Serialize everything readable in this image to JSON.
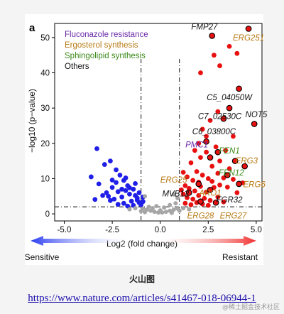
{
  "panel_label": "a",
  "legend": [
    {
      "label": "Fluconazole resistance",
      "color": "#6a2aa8"
    },
    {
      "label": "Ergosterol synthesis",
      "color": "#b87b15"
    },
    {
      "label": "Sphingolipid synthesis",
      "color": "#3a8a18"
    },
    {
      "label": "Others",
      "color": "#111111"
    }
  ],
  "arrows": {
    "left": "Sensitive",
    "right": "Resistant",
    "left_color": "#2b3df0",
    "right_color": "#f03030"
  },
  "caption": "火山图",
  "link": "https://www.nature.com/articles/s41467-018-06944-1",
  "watermark": "@稀土掘金技术社区",
  "chart_data": {
    "type": "scatter",
    "xlabel": "Log2 (fold change)",
    "ylabel": "−log10 (p−value)",
    "xlim": [
      -5.5,
      5.3
    ],
    "ylim": [
      -2,
      54
    ],
    "xticks": [
      -5.0,
      -2.5,
      0.0,
      2.5,
      5.0
    ],
    "yticks": [
      0,
      10,
      20,
      30,
      40,
      50
    ],
    "thresholds": {
      "x": [
        -1,
        1
      ],
      "y": 2
    },
    "colors": {
      "sensitive": "#1f1fe8",
      "resistant": "#e81010",
      "nonsig": "#a6a6a6",
      "highlight_edge": "#000000"
    },
    "series": [
      {
        "group": "sensitive",
        "points": [
          [
            -3.3,
            18.5
          ],
          [
            -2.9,
            14.0
          ],
          [
            -2.6,
            15.0
          ],
          [
            -2.3,
            12.5
          ],
          [
            -3.6,
            10.5
          ],
          [
            -3.2,
            8.5
          ],
          [
            -2.1,
            11.0
          ],
          [
            -1.9,
            9.5
          ],
          [
            -1.7,
            8.0
          ],
          [
            -1.4,
            7.0
          ],
          [
            -2.5,
            7.5
          ],
          [
            -2.8,
            6.0
          ],
          [
            -3.0,
            5.2
          ],
          [
            -2.2,
            6.3
          ],
          [
            -1.8,
            6.6
          ],
          [
            -1.6,
            5.6
          ],
          [
            -1.3,
            5.2
          ],
          [
            -1.2,
            4.5
          ],
          [
            -2.0,
            4.8
          ],
          [
            -2.4,
            4.2
          ],
          [
            -2.6,
            3.8
          ],
          [
            -1.5,
            3.6
          ],
          [
            -1.1,
            3.2
          ],
          [
            -1.9,
            3.0
          ],
          [
            -2.2,
            2.7
          ],
          [
            -1.4,
            2.4
          ],
          [
            -1.7,
            2.2
          ],
          [
            -1.0,
            2.6
          ],
          [
            -1.2,
            3.9
          ],
          [
            -0.9,
            3.5
          ],
          [
            -2.7,
            5.0
          ],
          [
            -3.4,
            4.1
          ],
          [
            -2.0,
            7.0
          ],
          [
            -1.6,
            7.4
          ],
          [
            -1.1,
            6.0
          ],
          [
            -0.9,
            4.8
          ],
          [
            -1.3,
            8.6
          ],
          [
            -2.3,
            8.9
          ],
          [
            -1.8,
            10.2
          ],
          [
            -2.5,
            9.6
          ]
        ]
      },
      {
        "group": "nonsig",
        "points": [
          [
            -0.9,
            1.5
          ],
          [
            -0.7,
            1.2
          ],
          [
            -0.5,
            0.9
          ],
          [
            -0.3,
            0.6
          ],
          [
            -0.1,
            0.4
          ],
          [
            0.1,
            0.4
          ],
          [
            0.3,
            0.6
          ],
          [
            0.5,
            0.9
          ],
          [
            0.7,
            1.2
          ],
          [
            0.9,
            1.5
          ],
          [
            -0.6,
            2.0
          ],
          [
            -0.4,
            1.6
          ],
          [
            0.2,
            1.8
          ],
          [
            0.5,
            2.5
          ],
          [
            0.8,
            3.0
          ],
          [
            -0.2,
            2.2
          ],
          [
            -1.3,
            1.6
          ],
          [
            -1.6,
            1.3
          ],
          [
            1.2,
            1.6
          ],
          [
            1.5,
            1.3
          ],
          [
            -0.8,
            0.5
          ],
          [
            0.6,
            0.3
          ],
          [
            0.0,
            1.0
          ],
          [
            -1.0,
            0.8
          ],
          [
            1.0,
            0.9
          ],
          [
            0.9,
            4.5
          ],
          [
            0.7,
            5.5
          ],
          [
            -0.8,
            5.0
          ]
        ]
      },
      {
        "group": "resistant",
        "points": [
          [
            2.8,
            45.0
          ],
          [
            3.1,
            42.0
          ],
          [
            3.6,
            47.5
          ],
          [
            4.0,
            45.5
          ],
          [
            2.1,
            40.0
          ],
          [
            3.0,
            29.0
          ],
          [
            2.6,
            26.5
          ],
          [
            2.2,
            24.0
          ],
          [
            2.4,
            22.0
          ],
          [
            2.0,
            20.0
          ],
          [
            3.8,
            22.0
          ],
          [
            1.8,
            18.0
          ],
          [
            2.1,
            16.0
          ],
          [
            2.4,
            17.5
          ],
          [
            2.9,
            19.0
          ],
          [
            3.1,
            15.0
          ],
          [
            3.4,
            18.0
          ],
          [
            2.7,
            13.5
          ],
          [
            1.6,
            14.5
          ],
          [
            1.9,
            12.0
          ],
          [
            2.2,
            11.0
          ],
          [
            1.4,
            10.5
          ],
          [
            1.7,
            9.5
          ],
          [
            2.5,
            10.0
          ],
          [
            3.0,
            11.5
          ],
          [
            3.3,
            10.2
          ],
          [
            3.6,
            12.8
          ],
          [
            1.3,
            8.0
          ],
          [
            1.5,
            7.2
          ],
          [
            1.8,
            6.5
          ],
          [
            2.1,
            7.8
          ],
          [
            2.4,
            6.2
          ],
          [
            2.8,
            7.5
          ],
          [
            3.1,
            8.2
          ],
          [
            3.5,
            7.6
          ],
          [
            1.2,
            5.6
          ],
          [
            1.4,
            4.6
          ],
          [
            1.7,
            4.2
          ],
          [
            2.0,
            5.2
          ],
          [
            2.3,
            4.4
          ],
          [
            2.6,
            3.8
          ],
          [
            3.0,
            4.8
          ],
          [
            3.3,
            3.4
          ],
          [
            1.3,
            3.0
          ],
          [
            1.6,
            2.6
          ],
          [
            1.9,
            3.2
          ],
          [
            2.2,
            2.8
          ],
          [
            2.5,
            2.4
          ],
          [
            4.0,
            6.0
          ],
          [
            4.3,
            8.8
          ],
          [
            1.1,
            6.8
          ],
          [
            1.2,
            11.8
          ],
          [
            2.0,
            9.0
          ],
          [
            2.7,
            9.2
          ],
          [
            3.8,
            9.8
          ]
        ]
      },
      {
        "group": "highlighted",
        "points": [
          [
            2.7,
            50.5
          ],
          [
            4.6,
            52.5
          ],
          [
            4.1,
            35.5
          ],
          [
            3.6,
            30.0
          ],
          [
            4.9,
            25.5
          ],
          [
            3.3,
            27.0
          ],
          [
            2.4,
            20.5
          ],
          [
            2.6,
            16.0
          ],
          [
            3.0,
            17.5
          ],
          [
            3.9,
            15.0
          ],
          [
            4.4,
            13.5
          ],
          [
            3.5,
            11.0
          ],
          [
            4.1,
            8.5
          ],
          [
            2.0,
            8.5
          ],
          [
            1.5,
            6.0
          ],
          [
            2.6,
            6.8
          ],
          [
            2.1,
            3.5
          ],
          [
            2.9,
            3.2
          ]
        ]
      }
    ],
    "annotations": [
      {
        "text": "FMP27",
        "x": 2.3,
        "y": 52.3,
        "color": "#111111"
      },
      {
        "text": "ERG251",
        "x": 4.6,
        "y": 49.2,
        "color": "#b87b15"
      },
      {
        "text": "C5_04050W",
        "x": 3.6,
        "y": 32.2,
        "color": "#111111"
      },
      {
        "text": "NOT5",
        "x": 5.0,
        "y": 27.4,
        "color": "#111111"
      },
      {
        "text": "C7_02530C",
        "x": 3.1,
        "y": 26.9,
        "color": "#111111"
      },
      {
        "text": "C6_03800C",
        "x": 2.8,
        "y": 22.6,
        "color": "#111111"
      },
      {
        "text": "PMC1",
        "x": 1.9,
        "y": 18.8,
        "color": "#6a2aa8"
      },
      {
        "text": "FEN1",
        "x": 3.6,
        "y": 17.1,
        "color": "#3a8a18"
      },
      {
        "text": "ERG3",
        "x": 4.5,
        "y": 14.3,
        "color": "#b87b15"
      },
      {
        "text": "FEN12",
        "x": 3.7,
        "y": 10.9,
        "color": "#3a8a18"
      },
      {
        "text": "ERG25",
        "x": 0.7,
        "y": 8.9,
        "color": "#b87b15"
      },
      {
        "text": "ERG6",
        "x": 4.9,
        "y": 7.6,
        "color": "#b87b15"
      },
      {
        "text": "MVB12",
        "x": 0.8,
        "y": 5.0,
        "color": "#111111"
      },
      {
        "text": "ARO1",
        "x": 2.6,
        "y": 5.2,
        "color": "#b87b15"
      },
      {
        "text": "FGR32",
        "x": 3.6,
        "y": 3.2,
        "color": "#111111"
      },
      {
        "text": "ERG28",
        "x": 2.1,
        "y": -1.3,
        "color": "#b87b15"
      },
      {
        "text": "ERG27",
        "x": 3.8,
        "y": -1.3,
        "color": "#b87b15"
      }
    ]
  }
}
